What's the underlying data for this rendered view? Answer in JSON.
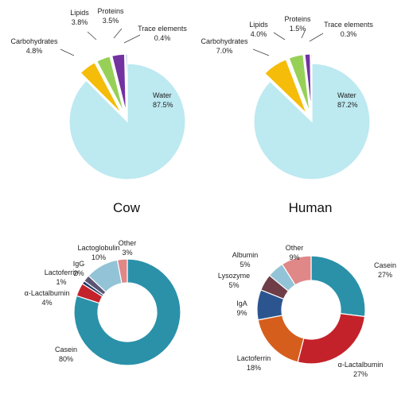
{
  "chart_data": [
    {
      "type": "pie",
      "title": "Cow",
      "slices": [
        {
          "label": "Water",
          "value": 87.5,
          "value_label": "87.5%",
          "color": "#bde9f1"
        },
        {
          "label": "Carbohydrates",
          "value": 4.8,
          "value_label": "4.8%",
          "color": "#f5bd0a"
        },
        {
          "label": "Lipids",
          "value": 3.8,
          "value_label": "3.8%",
          "color": "#97d057"
        },
        {
          "label": "Proteins",
          "value": 3.5,
          "value_label": "3.5%",
          "color": "#7232a0"
        },
        {
          "label": "Trace elements",
          "value": 0.4,
          "value_label": "0.4%",
          "color": "#6f8fc4"
        }
      ]
    },
    {
      "type": "pie",
      "title": "Human",
      "slices": [
        {
          "label": "Water",
          "value": 87.2,
          "value_label": "87.2%",
          "color": "#bde9f1"
        },
        {
          "label": "Carbohydrates",
          "value": 7.0,
          "value_label": "7.0%",
          "color": "#f5bd0a"
        },
        {
          "label": "Lipids",
          "value": 4.0,
          "value_label": "4.0%",
          "color": "#97d057"
        },
        {
          "label": "Proteins",
          "value": 1.5,
          "value_label": "1.5%",
          "color": "#7232a0"
        },
        {
          "label": "Trace elements",
          "value": 0.3,
          "value_label": "0.3%",
          "color": "#6f8fc4"
        }
      ]
    },
    {
      "type": "pie",
      "title": "",
      "slices": [
        {
          "label": "Casein",
          "value": 80,
          "value_label": "80%",
          "color": "#2a91a9"
        },
        {
          "label": "α-Lactalbumin",
          "value": 4,
          "value_label": "4%",
          "color": "#c4222a"
        },
        {
          "label": "Lactoferrin",
          "value": 1,
          "value_label": "1%",
          "color": "#1f3a66"
        },
        {
          "label": "IgG",
          "value": 2,
          "value_label": "2%",
          "color": "#5a5575"
        },
        {
          "label": "Lactoglobulin",
          "value": 10,
          "value_label": "10%",
          "color": "#93c3d6"
        },
        {
          "label": "Other",
          "value": 3,
          "value_label": "3%",
          "color": "#e08787"
        }
      ]
    },
    {
      "type": "pie",
      "title": "",
      "slices": [
        {
          "label": "Casein",
          "value": 27,
          "value_label": "27%",
          "color": "#2a91a9"
        },
        {
          "label": "α-Lactalbumin",
          "value": 27,
          "value_label": "27%",
          "color": "#c4222a"
        },
        {
          "label": "Lactoferrin",
          "value": 18,
          "value_label": "18%",
          "color": "#d65e1c"
        },
        {
          "label": "IgA",
          "value": 9,
          "value_label": "9%",
          "color": "#2c5590"
        },
        {
          "label": "Lysozyme",
          "value": 5,
          "value_label": "5%",
          "color": "#6e3d47"
        },
        {
          "label": "Albumin",
          "value": 5,
          "value_label": "5%",
          "color": "#93c3d6"
        },
        {
          "label": "Other",
          "value": 9,
          "value_label": "9%",
          "color": "#e08787"
        }
      ]
    }
  ]
}
